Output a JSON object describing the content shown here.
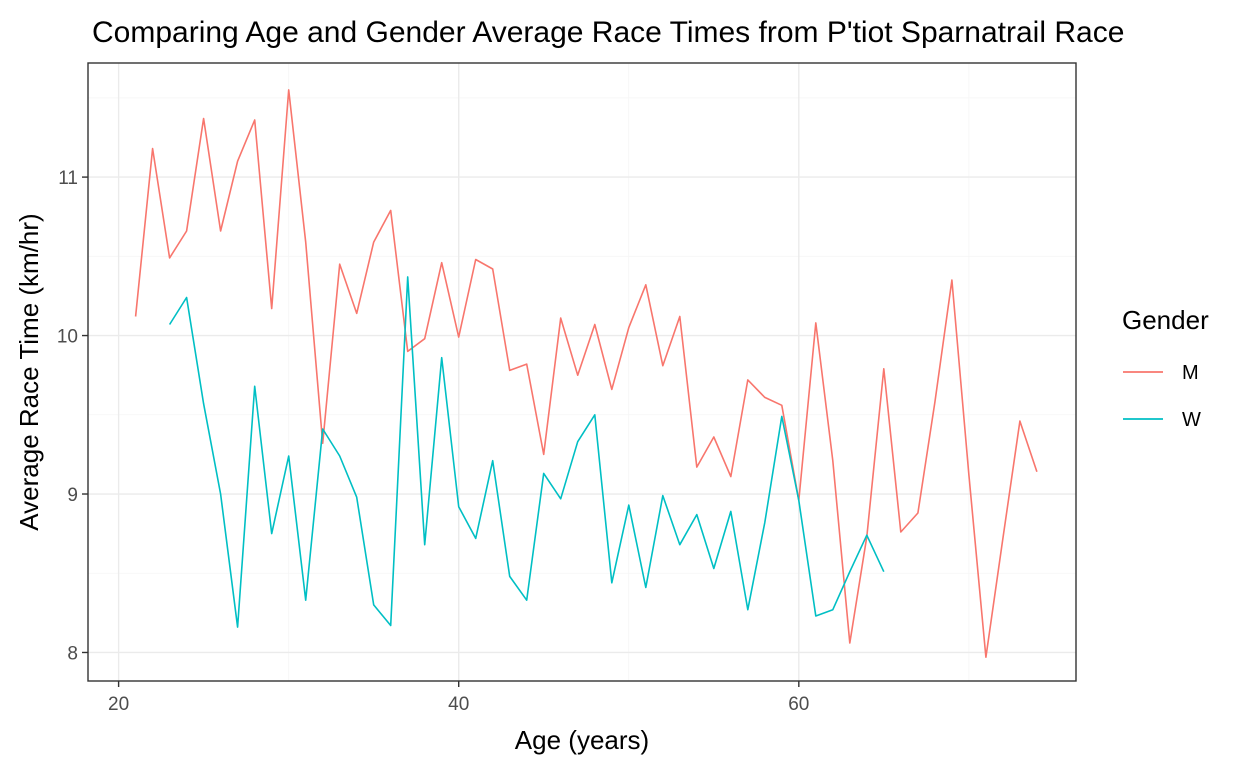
{
  "chart_data": {
    "type": "line",
    "title": "Comparing Age and Gender Average Race Times from P'tiot Sparnatrail Race",
    "xlabel": "Age (years)",
    "ylabel": "Average Race Time (km/hr)",
    "xlim": [
      18.2,
      76.3
    ],
    "ylim": [
      7.82,
      11.72
    ],
    "x_ticks": [
      20,
      40,
      60
    ],
    "y_ticks": [
      8,
      9,
      10,
      11
    ],
    "grid": true,
    "legend": {
      "title": "Gender",
      "placement": "right"
    },
    "series": [
      {
        "name": "M",
        "color": "#F8766D",
        "points": [
          [
            21,
            10.12
          ],
          [
            22,
            11.18
          ],
          [
            23,
            10.49
          ],
          [
            24,
            10.66
          ],
          [
            25,
            11.37
          ],
          [
            26,
            10.66
          ],
          [
            27,
            11.1
          ],
          [
            28,
            11.36
          ],
          [
            29,
            10.17
          ],
          [
            30,
            11.55
          ],
          [
            31,
            10.59
          ],
          [
            32,
            9.32
          ],
          [
            33,
            10.45
          ],
          [
            34,
            10.14
          ],
          [
            35,
            10.59
          ],
          [
            36,
            10.79
          ],
          [
            37,
            9.9
          ],
          [
            38,
            9.98
          ],
          [
            39,
            10.46
          ],
          [
            40,
            9.99
          ],
          [
            41,
            10.48
          ],
          [
            42,
            10.42
          ],
          [
            43,
            9.78
          ],
          [
            44,
            9.82
          ],
          [
            45,
            9.25
          ],
          [
            46,
            10.11
          ],
          [
            47,
            9.75
          ],
          [
            48,
            10.07
          ],
          [
            49,
            9.66
          ],
          [
            50,
            10.05
          ],
          [
            51,
            10.32
          ],
          [
            52,
            9.81
          ],
          [
            53,
            10.12
          ],
          [
            54,
            9.17
          ],
          [
            55,
            9.36
          ],
          [
            56,
            9.11
          ],
          [
            57,
            9.72
          ],
          [
            58,
            9.61
          ],
          [
            59,
            9.56
          ],
          [
            60,
            8.96
          ],
          [
            61,
            10.08
          ],
          [
            62,
            9.21
          ],
          [
            63,
            8.06
          ],
          [
            64,
            8.73
          ],
          [
            65,
            9.79
          ],
          [
            66,
            8.76
          ],
          [
            67,
            8.88
          ],
          [
            68,
            9.58
          ],
          [
            69,
            10.35
          ],
          [
            70,
            9.12
          ],
          [
            71,
            7.97
          ],
          [
            72,
            8.72
          ],
          [
            73,
            9.46
          ],
          [
            74,
            9.14
          ]
        ]
      },
      {
        "name": "W",
        "color": "#00BFC4",
        "points": [
          [
            23,
            10.07
          ],
          [
            24,
            10.24
          ],
          [
            25,
            9.57
          ],
          [
            26,
            9.0
          ],
          [
            27,
            8.16
          ],
          [
            28,
            9.68
          ],
          [
            29,
            8.75
          ],
          [
            30,
            9.24
          ],
          [
            31,
            8.33
          ],
          [
            32,
            9.41
          ],
          [
            33,
            9.24
          ],
          [
            34,
            8.98
          ],
          [
            35,
            8.3
          ],
          [
            36,
            8.17
          ],
          [
            37,
            10.37
          ],
          [
            38,
            8.68
          ],
          [
            39,
            9.86
          ],
          [
            40,
            8.92
          ],
          [
            41,
            8.72
          ],
          [
            42,
            9.21
          ],
          [
            43,
            8.48
          ],
          [
            44,
            8.33
          ],
          [
            45,
            9.13
          ],
          [
            46,
            8.97
          ],
          [
            47,
            9.33
          ],
          [
            48,
            9.5
          ],
          [
            49,
            8.44
          ],
          [
            50,
            8.93
          ],
          [
            51,
            8.41
          ],
          [
            52,
            8.99
          ],
          [
            53,
            8.68
          ],
          [
            54,
            8.87
          ],
          [
            55,
            8.53
          ],
          [
            56,
            8.89
          ],
          [
            57,
            8.27
          ],
          [
            58,
            8.82
          ],
          [
            59,
            9.49
          ],
          [
            60,
            8.96
          ],
          [
            61,
            8.23
          ],
          [
            62,
            8.27
          ],
          [
            63,
            8.51
          ],
          [
            64,
            8.74
          ],
          [
            65,
            8.51
          ]
        ]
      }
    ]
  }
}
